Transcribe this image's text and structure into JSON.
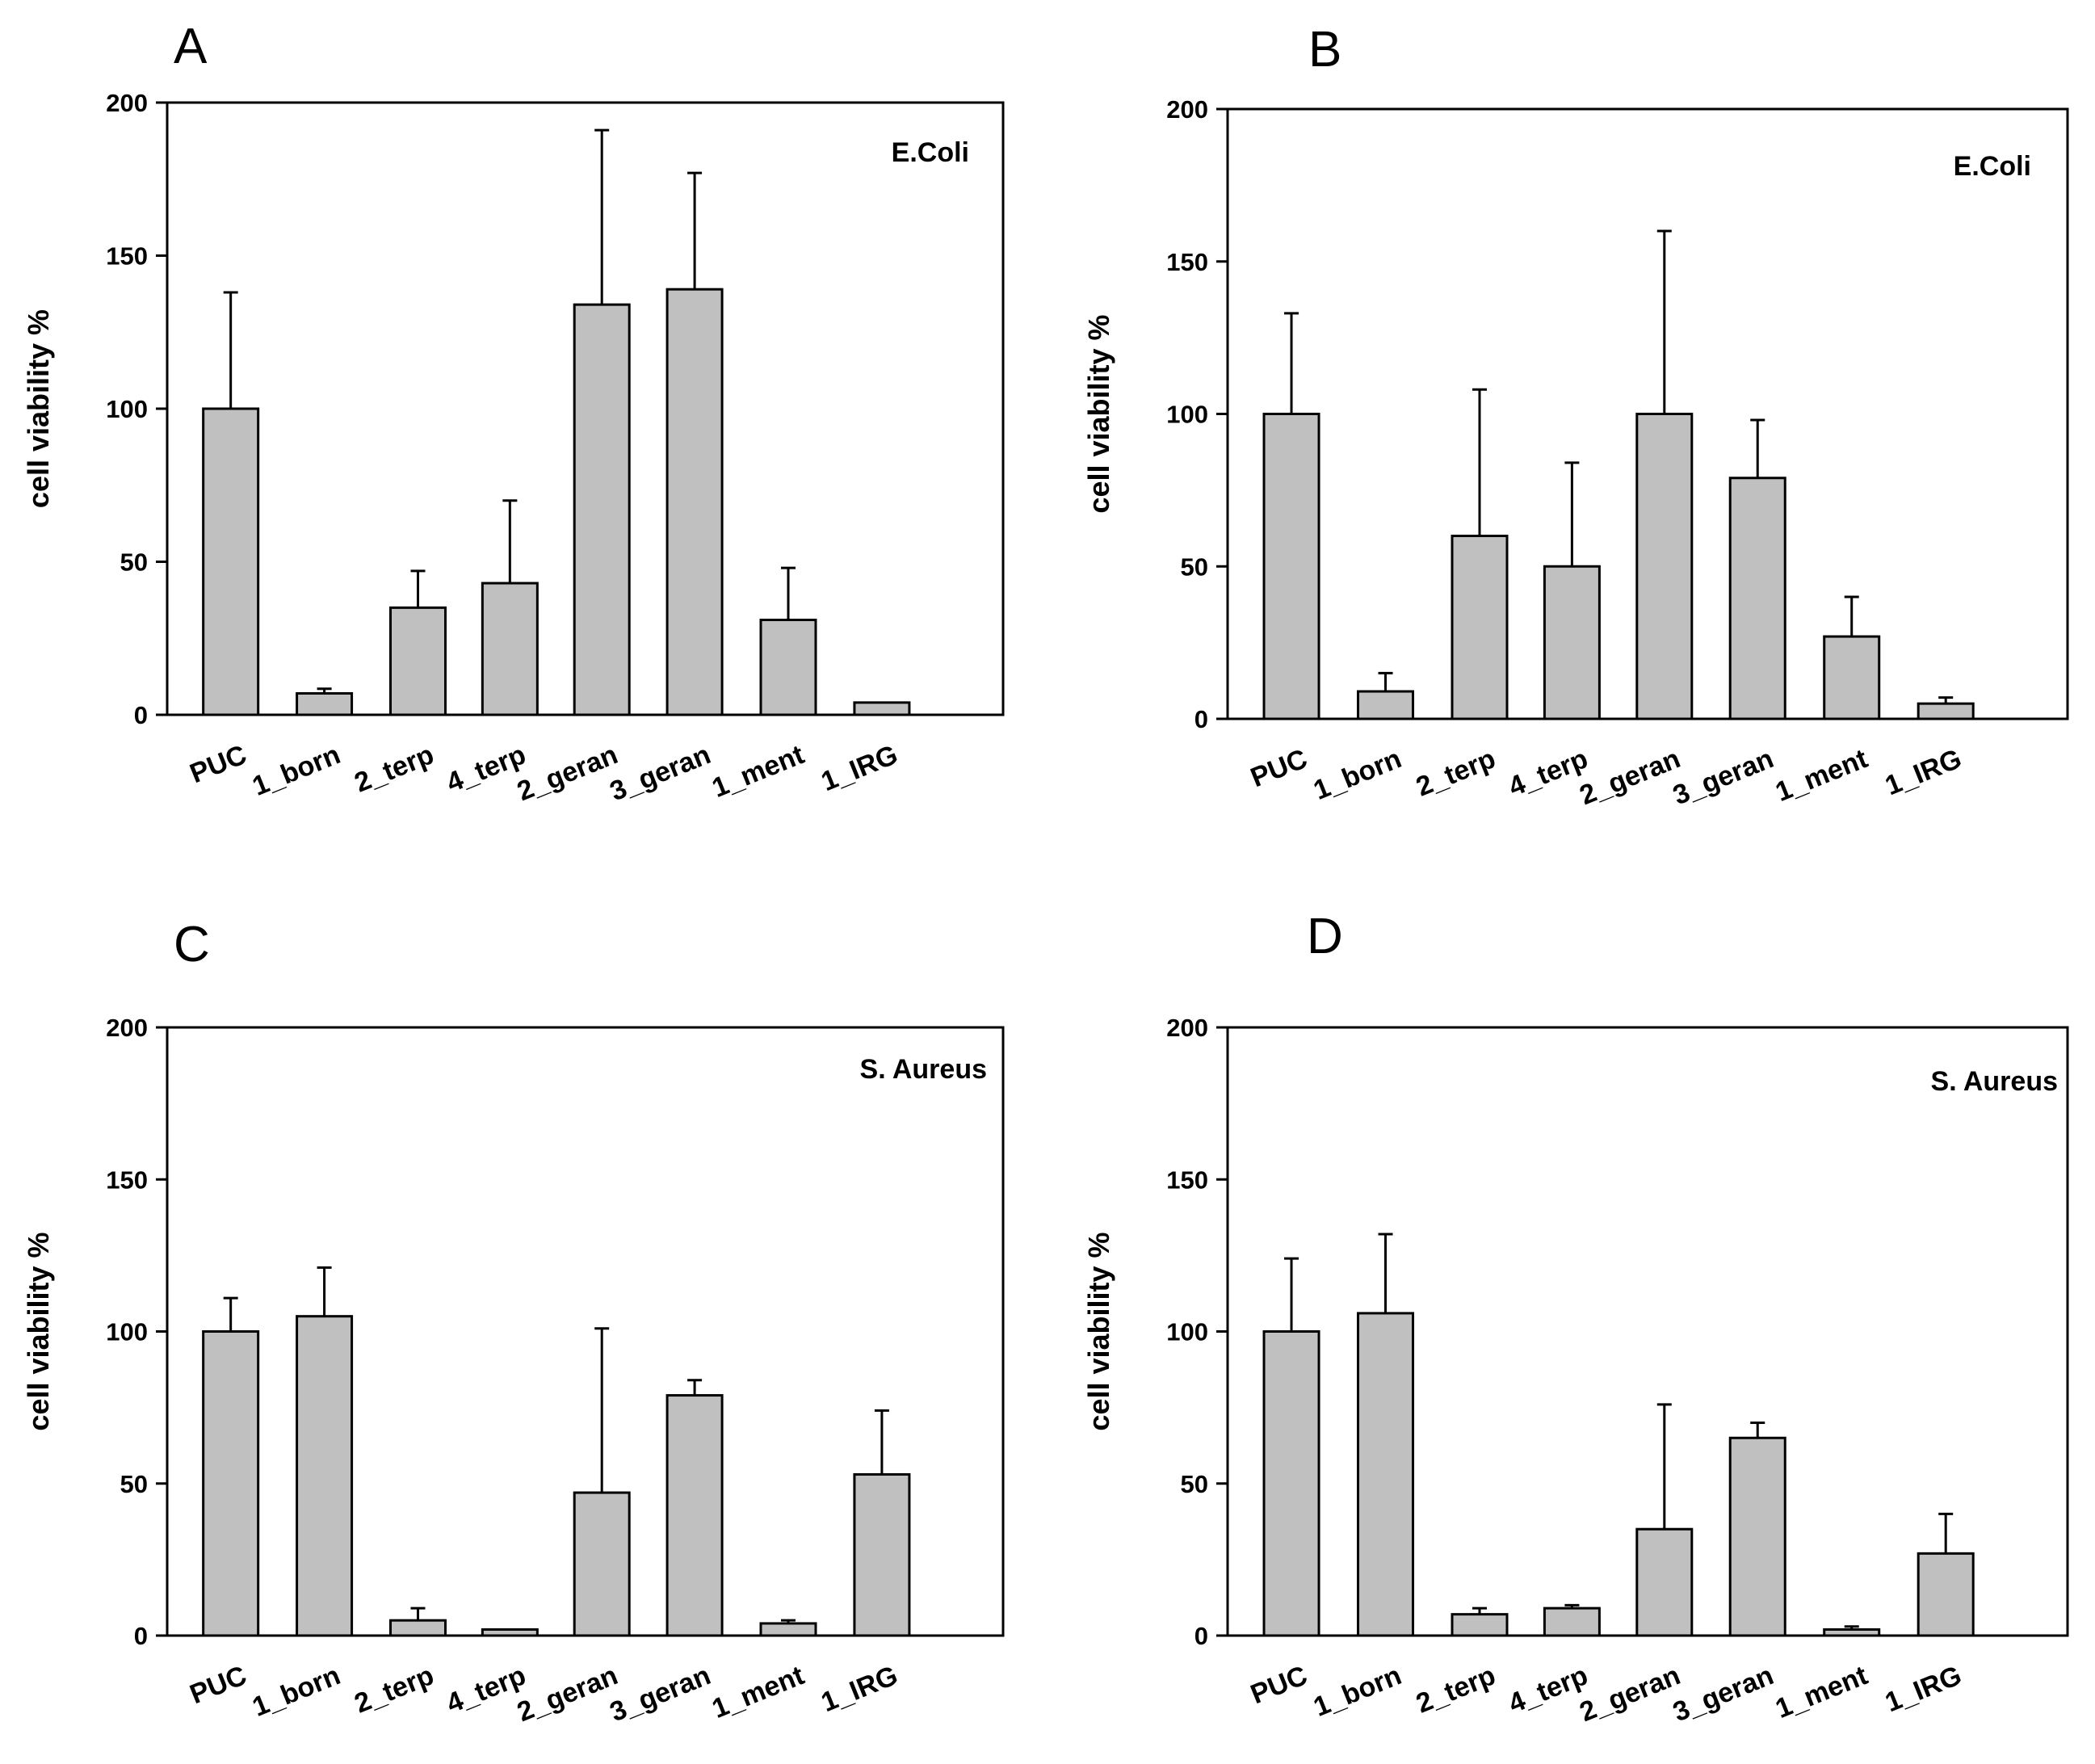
{
  "chart_data": [
    {
      "type": "bar",
      "panel": "A",
      "organism": "E.Coli",
      "ylabel": "cell viability %",
      "ylim": [
        0,
        200
      ],
      "yticks": [
        "0",
        "50",
        "100",
        "150",
        "200"
      ],
      "categories": [
        "PUC",
        "1_born",
        "2_terp",
        "4_terp",
        "2_geran",
        "3_geran",
        "1_ment",
        "1_IRG"
      ],
      "values": [
        100,
        7,
        35,
        43,
        134,
        139,
        31,
        4
      ],
      "errors": [
        38,
        1.5,
        12,
        27,
        57,
        38,
        17,
        0
      ]
    },
    {
      "type": "bar",
      "panel": "B",
      "organism": "E.Coli",
      "ylabel": "cell viability %",
      "ylim": [
        0,
        200
      ],
      "yticks": [
        "0",
        "50",
        "100",
        "150",
        "200"
      ],
      "categories": [
        "PUC",
        "1_born",
        "2_terp",
        "4_terp",
        "2_geran",
        "3_geran",
        "1_ment",
        "1_IRG"
      ],
      "values": [
        100,
        9,
        60,
        50,
        100,
        79,
        27,
        5
      ],
      "errors": [
        33,
        6,
        48,
        34,
        60,
        19,
        13,
        2
      ]
    },
    {
      "type": "bar",
      "panel": "C",
      "organism": "S. Aureus",
      "ylabel": "cell viability %",
      "ylim": [
        0,
        200
      ],
      "yticks": [
        "0",
        "50",
        "100",
        "150",
        "200"
      ],
      "categories": [
        "PUC",
        "1_born",
        "2_terp",
        "4_terp",
        "2_geran",
        "3_geran",
        "1_ment",
        "1_IRG"
      ],
      "values": [
        100,
        105,
        5,
        2,
        47,
        79,
        4,
        53
      ],
      "errors": [
        11,
        16,
        4,
        0,
        54,
        5,
        1,
        21
      ]
    },
    {
      "type": "bar",
      "panel": "D",
      "organism": "S. Aureus",
      "ylabel": "cell viability %",
      "ylim": [
        0,
        200
      ],
      "yticks": [
        "0",
        "50",
        "100",
        "150",
        "200"
      ],
      "categories": [
        "PUC",
        "1_born",
        "2_terp",
        "4_terp",
        "2_geran",
        "3_geran",
        "1_ment",
        "1_IRG"
      ],
      "values": [
        100,
        106,
        7,
        9,
        35,
        65,
        2,
        27
      ],
      "errors": [
        24,
        26,
        2,
        1,
        41,
        5,
        1,
        13
      ]
    }
  ]
}
